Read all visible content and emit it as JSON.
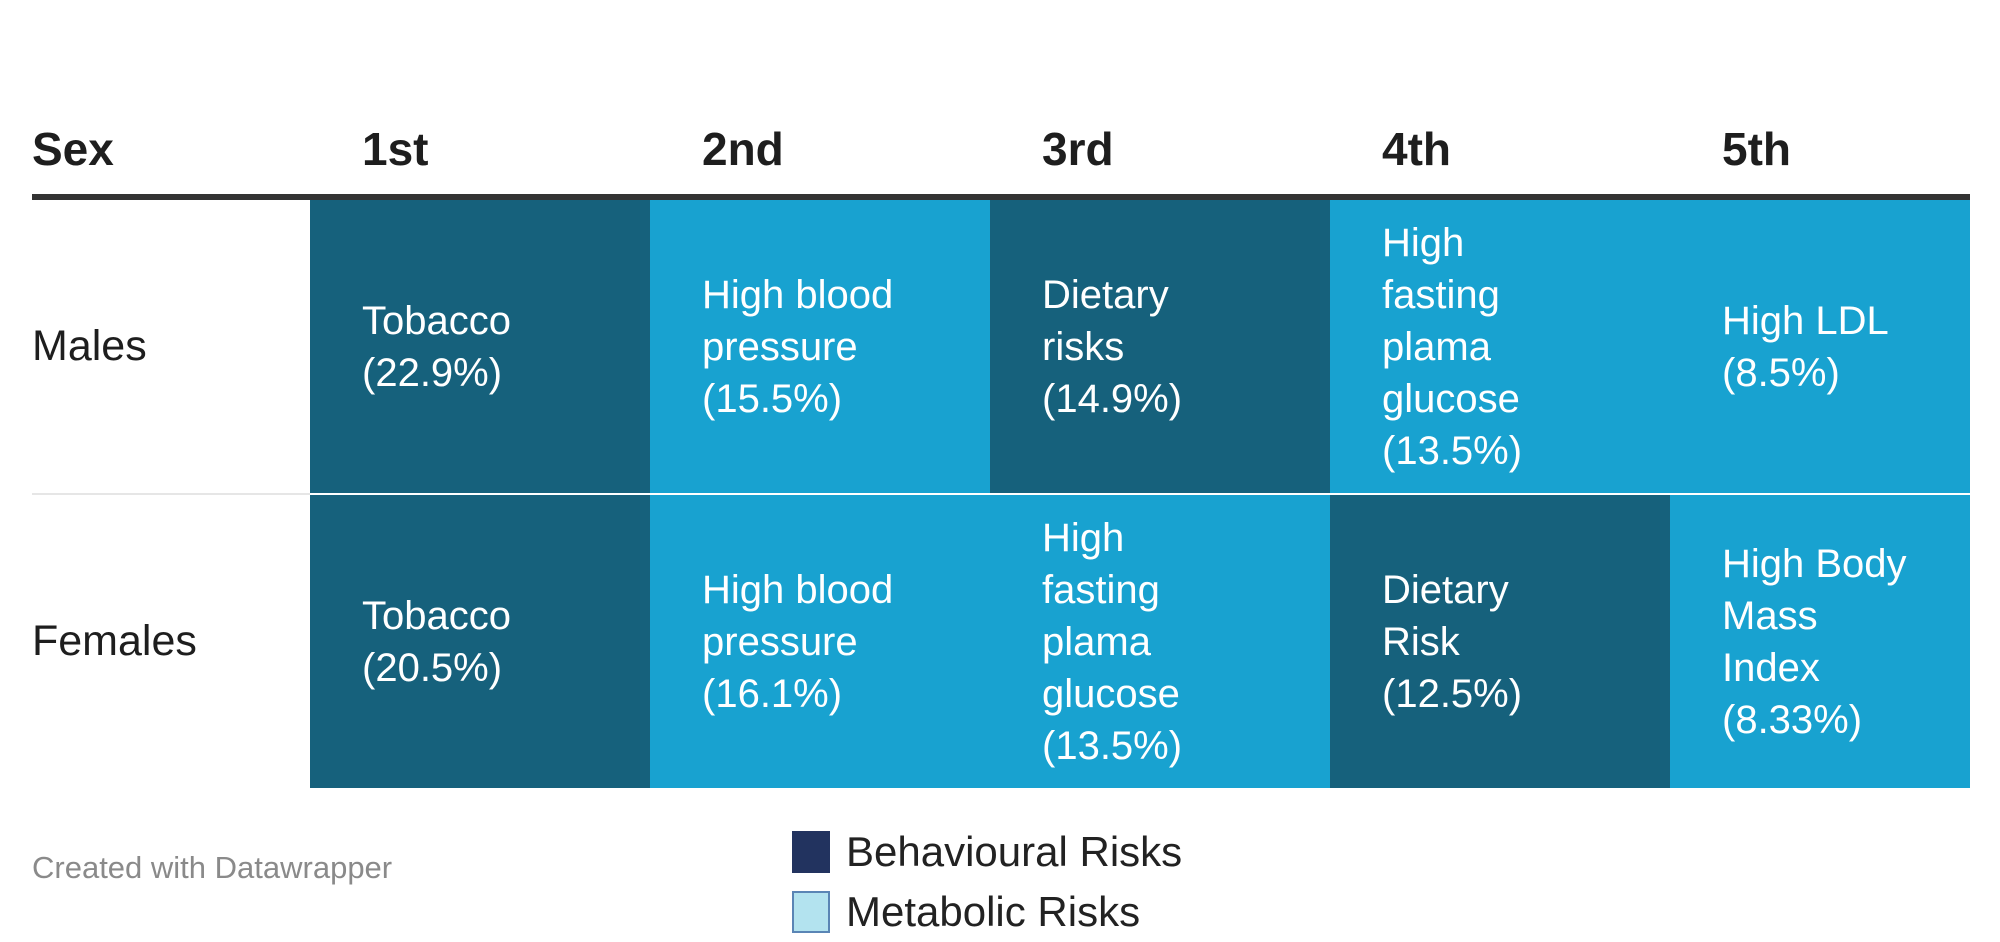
{
  "chart_data": {
    "type": "table",
    "columns": [
      "Sex",
      "1st",
      "2nd",
      "3rd",
      "4th",
      "5th"
    ],
    "rows": [
      {
        "label": "Males",
        "cells": [
          {
            "text": "Tobacco\n(22.9%)",
            "risk": "Behavioural Risks",
            "value": 22.9
          },
          {
            "text": "High blood\npressure\n(15.5%)",
            "risk": "Metabolic Risks",
            "value": 15.5
          },
          {
            "text": "Dietary\nrisks\n(14.9%)",
            "risk": "Behavioural Risks",
            "value": 14.9
          },
          {
            "text": "High\nfasting\nplama\nglucose\n(13.5%)",
            "risk": "Metabolic Risks",
            "value": 13.5
          },
          {
            "text": "High LDL\n(8.5%)",
            "risk": "Metabolic Risks",
            "value": 8.5
          }
        ]
      },
      {
        "label": "Females",
        "cells": [
          {
            "text": "Tobacco\n(20.5%)",
            "risk": "Behavioural Risks",
            "value": 20.5
          },
          {
            "text": "High blood\npressure\n(16.1%)",
            "risk": "Metabolic Risks",
            "value": 16.1
          },
          {
            "text": "High\nfasting\nplama\nglucose\n(13.5%)",
            "risk": "Metabolic Risks",
            "value": 13.5
          },
          {
            "text": "Dietary\nRisk\n(12.5%)",
            "risk": "Behavioural Risks",
            "value": 12.5
          },
          {
            "text": "High Body\nMass\nIndex\n(8.33%)",
            "risk": "Metabolic Risks",
            "value": 8.33
          }
        ]
      }
    ],
    "legend": [
      {
        "label": "Behavioural Risks",
        "color": "#22335f"
      },
      {
        "label": "Metabolic Risks",
        "color": "#b3e3ef"
      }
    ],
    "cell_colors": {
      "Behavioural Risks": "#16617c",
      "Metabolic Risks": "#18a2d0"
    },
    "legend_placement": "bottom-center"
  },
  "footer": {
    "credit": "Created with Datawrapper"
  }
}
